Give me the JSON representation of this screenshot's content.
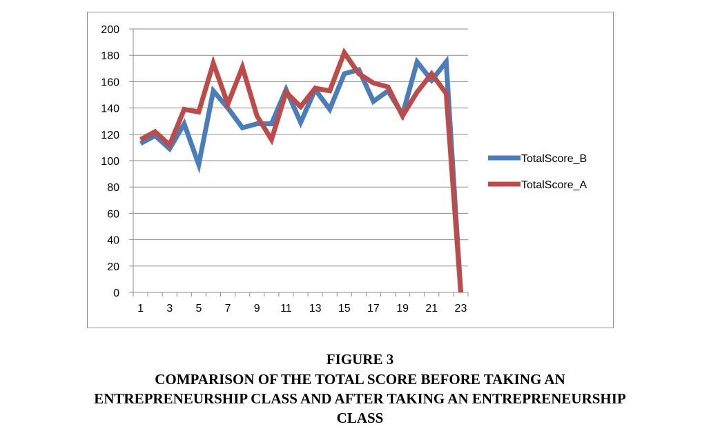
{
  "figure_label": "FIGURE 3",
  "caption_lines": [
    "COMPARISON OF THE TOTAL SCORE BEFORE TAKING AN",
    "ENTREPRENEURSHIP CLASS AND AFTER TAKING AN ENTREPRENEURSHIP",
    "CLASS"
  ],
  "chart_data": {
    "type": "line",
    "x": [
      1,
      2,
      3,
      4,
      5,
      6,
      7,
      8,
      9,
      10,
      11,
      12,
      13,
      14,
      15,
      16,
      17,
      18,
      19,
      20,
      21,
      22,
      23
    ],
    "x_tick_labels": [
      "1",
      "3",
      "5",
      "7",
      "9",
      "11",
      "13",
      "15",
      "17",
      "19",
      "21",
      "23"
    ],
    "y_tick_labels": [
      "0",
      "20",
      "40",
      "60",
      "80",
      "100",
      "120",
      "140",
      "160",
      "180",
      "200"
    ],
    "ylim": [
      0,
      200
    ],
    "y_step": 20,
    "grid": true,
    "legend_position": "right",
    "series": [
      {
        "name": "TotalScore_B",
        "color": "#4a7ebb",
        "values": [
          113,
          119,
          109,
          128,
          97,
          153,
          140,
          125,
          128,
          128,
          154,
          129,
          154,
          139,
          166,
          169,
          145,
          153,
          135,
          175,
          161,
          175,
          0
        ]
      },
      {
        "name": "TotalScore_A",
        "color": "#be4b48",
        "values": [
          116,
          122,
          112,
          139,
          137,
          174,
          143,
          171,
          134,
          116,
          152,
          141,
          155,
          153,
          182,
          166,
          159,
          156,
          134,
          152,
          166,
          151,
          0
        ]
      }
    ]
  }
}
